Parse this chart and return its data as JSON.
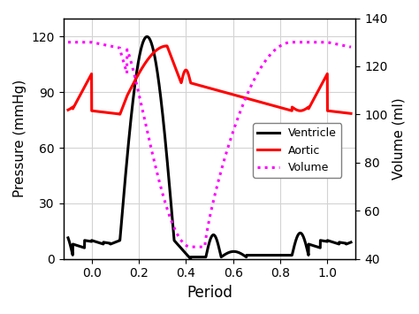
{
  "title": "",
  "xlabel": "Period",
  "ylabel_left": "Pressure (mmHg)",
  "ylabel_right": "Volume (ml)",
  "xlim": [
    -0.12,
    1.12
  ],
  "ylim_left": [
    0,
    130
  ],
  "ylim_right": [
    40,
    140
  ],
  "yticks_left": [
    0,
    30,
    60,
    90,
    120
  ],
  "yticks_right": [
    40,
    60,
    80,
    100,
    120,
    140
  ],
  "xticks": [
    -0.1,
    0,
    0.2,
    0.4,
    0.6,
    0.8,
    1.0,
    1.1
  ],
  "xtick_labels": [
    "",
    "0",
    "0.2",
    "0.4",
    "0.6",
    "0.8",
    "1",
    ""
  ],
  "grid": true,
  "legend_entries": [
    "Ventricle",
    "Aortic",
    "Volume"
  ],
  "legend_colors": [
    "black",
    "red",
    "magenta"
  ],
  "legend_styles": [
    "-",
    "-",
    ":"
  ],
  "ventricle_color": "black",
  "aortic_color": "red",
  "volume_color": "magenta",
  "linewidth": 2.2
}
